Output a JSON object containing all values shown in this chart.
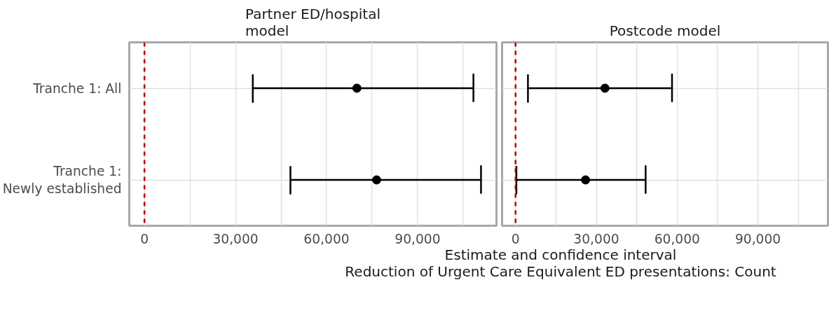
{
  "chart_data": [
    {
      "type": "scatter",
      "title": "Partner ED/hospital\nmodel",
      "xlabel": "Estimate and confidence interval\nReduction of Urgent Care Equivalent ED presentations: Count",
      "orientation": "horizontal",
      "categories": [
        "Tranche 1: All",
        "Tranche 1:\nNewly established"
      ],
      "values": [
        70000,
        76500
      ],
      "errors": [
        [
          35700,
          108400
        ],
        [
          48100,
          110900
        ]
      ],
      "color": "#000000",
      "marker": "circle",
      "xlim": [
        -5000,
        116000
      ],
      "xticks": [
        0,
        {
          "value": 15000,
          "label": null
        },
        {
          "value": 30000,
          "label": "30,000"
        },
        {
          "value": 45000,
          "label": null
        },
        {
          "value": 60000,
          "label": "60,000"
        },
        {
          "value": 75000,
          "label": null
        },
        {
          "value": 90000,
          "label": "90,000"
        },
        {
          "value": 105000,
          "label": null
        }
      ],
      "ref_lines": [
        {
          "axis": "x",
          "value": 0,
          "color": "#b30000",
          "line_style": "dashed"
        }
      ],
      "grid": true
    },
    {
      "type": "scatter",
      "title": "Postcode model",
      "orientation": "horizontal",
      "categories": [
        null,
        null
      ],
      "values": [
        33200,
        26000
      ],
      "errors": [
        [
          4600,
          58100
        ],
        [
          300,
          48300
        ]
      ],
      "color": "#000000",
      "marker": "circle",
      "xlim": [
        -5000,
        116000
      ],
      "xticks": [
        0,
        {
          "value": 15000,
          "label": null
        },
        {
          "value": 30000,
          "label": "30,000"
        },
        {
          "value": 45000,
          "label": null
        },
        {
          "value": 60000,
          "label": "60,000"
        },
        {
          "value": 75000,
          "label": null
        },
        {
          "value": 90000,
          "label": "90,000"
        },
        {
          "value": 105000,
          "label": null
        }
      ],
      "ref_lines": [
        {
          "axis": "x",
          "value": 0,
          "color": "#b30000",
          "line_style": "dashed"
        }
      ],
      "grid": true
    }
  ]
}
